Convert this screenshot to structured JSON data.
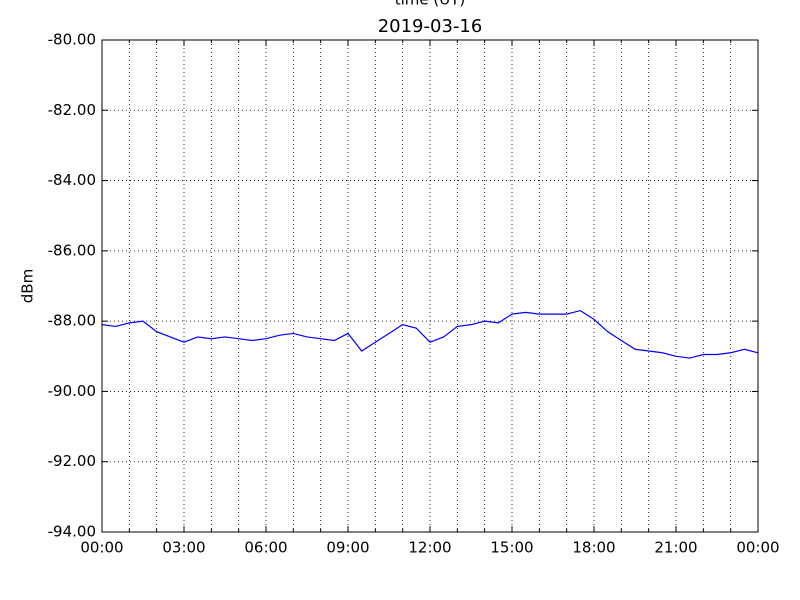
{
  "chart_data": {
    "type": "line",
    "title": "2019-03-16",
    "xlabel": "time (UT)",
    "ylabel": "dBm",
    "x": [
      0,
      0.5,
      1,
      1.5,
      2,
      2.5,
      3,
      3.5,
      4,
      4.5,
      5,
      5.5,
      6,
      6.5,
      7,
      7.5,
      8,
      8.5,
      9,
      9.5,
      10,
      10.5,
      11,
      11.5,
      12,
      12.5,
      13,
      13.5,
      14,
      14.5,
      15,
      15.5,
      16,
      16.5,
      17,
      17.5,
      18,
      18.5,
      19,
      19.5,
      20,
      20.5,
      21,
      21.5,
      22,
      22.5,
      23,
      23.5,
      24
    ],
    "series": [
      {
        "name": "dBm",
        "color": "#0000ff",
        "values": [
          -88.1,
          -88.15,
          -88.05,
          -88.0,
          -88.3,
          -88.45,
          -88.6,
          -88.45,
          -88.5,
          -88.45,
          -88.5,
          -88.55,
          -88.5,
          -88.4,
          -88.35,
          -88.45,
          -88.5,
          -88.55,
          -88.35,
          -88.85,
          -88.6,
          -88.35,
          -88.1,
          -88.2,
          -88.6,
          -88.45,
          -88.15,
          -88.1,
          -88.0,
          -88.05,
          -87.8,
          -87.75,
          -87.8,
          -87.8,
          -87.8,
          -87.7,
          -87.95,
          -88.3,
          -88.55,
          -88.8,
          -88.85,
          -88.9,
          -89.0,
          -89.05,
          -88.95,
          -88.95,
          -88.9,
          -88.8,
          -88.9
        ]
      }
    ],
    "xlim": [
      0,
      24
    ],
    "xticks": [
      {
        "value": 0,
        "label": "00:00"
      },
      {
        "value": 3,
        "label": "03:00"
      },
      {
        "value": 6,
        "label": "06:00"
      },
      {
        "value": 9,
        "label": "09:00"
      },
      {
        "value": 12,
        "label": "12:00"
      },
      {
        "value": 15,
        "label": "15:00"
      },
      {
        "value": 18,
        "label": "18:00"
      },
      {
        "value": 21,
        "label": "21:00"
      },
      {
        "value": 24,
        "label": "00:00"
      }
    ],
    "xminorticks": [
      1,
      2,
      4,
      5,
      7,
      8,
      10,
      11,
      13,
      14,
      16,
      17,
      19,
      20,
      22,
      23
    ],
    "ylim": [
      -94,
      -80
    ],
    "yticks": [
      {
        "value": -94,
        "label": "-94.00"
      },
      {
        "value": -92,
        "label": "-92.00"
      },
      {
        "value": -90,
        "label": "-90.00"
      },
      {
        "value": -88,
        "label": "-88.00"
      },
      {
        "value": -86,
        "label": "-86.00"
      },
      {
        "value": -84,
        "label": "-84.00"
      },
      {
        "value": -82,
        "label": "-82.00"
      },
      {
        "value": -80,
        "label": "-80.00"
      }
    ],
    "grid": true
  }
}
